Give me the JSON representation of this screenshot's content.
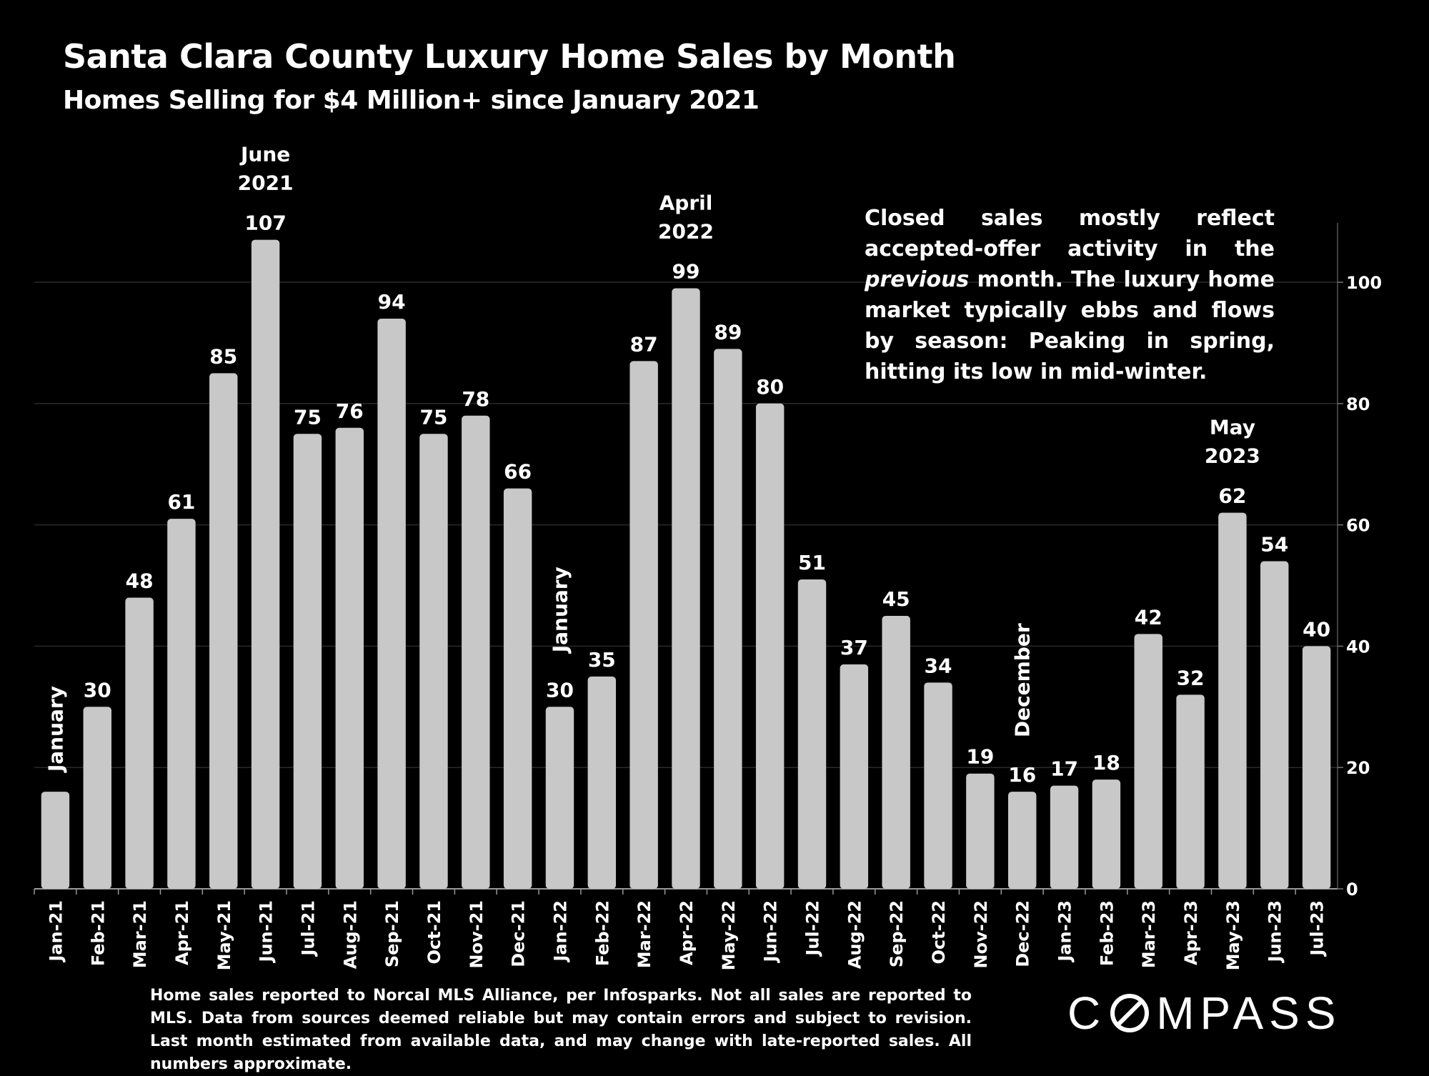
{
  "chart_data": {
    "type": "bar",
    "title": "Santa Clara County Luxury Home Sales by Month",
    "subtitle": "Homes Selling for $4 Million+ since January 2021",
    "categories": [
      "Jan-21",
      "Feb-21",
      "Mar-21",
      "Apr-21",
      "May-21",
      "Jun-21",
      "Jul-21",
      "Aug-21",
      "Sep-21",
      "Oct-21",
      "Nov-21",
      "Dec-21",
      "Jan-22",
      "Feb-22",
      "Mar-22",
      "Apr-22",
      "May-22",
      "Jun-22",
      "Jul-22",
      "Aug-22",
      "Sep-22",
      "Oct-22",
      "Nov-22",
      "Dec-22",
      "Jan-23",
      "Feb-23",
      "Mar-23",
      "Apr-23",
      "May-23",
      "Jun-23",
      "Jul-23"
    ],
    "values": [
      16,
      30,
      48,
      61,
      85,
      107,
      75,
      76,
      94,
      75,
      78,
      66,
      30,
      35,
      87,
      99,
      89,
      80,
      51,
      37,
      45,
      34,
      19,
      16,
      17,
      18,
      42,
      32,
      62,
      54,
      40
    ],
    "value_labels": [
      "",
      "30",
      "48",
      "61",
      "85",
      "107",
      "75",
      "76",
      "94",
      "75",
      "78",
      "66",
      "30",
      "35",
      "87",
      "99",
      "89",
      "80",
      "51",
      "37",
      "45",
      "34",
      "19",
      "16",
      "17",
      "18",
      "42",
      "32",
      "62",
      "54",
      "40"
    ],
    "ylim": [
      0,
      110
    ],
    "yticks": [
      0,
      20,
      40,
      60,
      80,
      100
    ],
    "y_axis_side": "right",
    "grid": true,
    "bar_color": "#c8c8c8",
    "annotations": [
      {
        "index": 0,
        "text": "January",
        "style": "vertical"
      },
      {
        "index": 5,
        "lines": [
          "June",
          "2021"
        ],
        "style": "stacked"
      },
      {
        "index": 12,
        "text": "January",
        "style": "vertical"
      },
      {
        "index": 15,
        "lines": [
          "April",
          "2022"
        ],
        "style": "stacked"
      },
      {
        "index": 23,
        "text": "December",
        "style": "vertical"
      },
      {
        "index": 28,
        "lines": [
          "May",
          "2023"
        ],
        "style": "stacked"
      }
    ]
  },
  "note": {
    "before": "Closed sales mostly reflect accepted-offer activity in the ",
    "emphasis": "previous",
    "after": " month. The luxury home market typically ebbs and flows by season: Peaking in spring, hitting its low in mid-winter."
  },
  "footer": "Home sales reported to Norcal MLS Alliance, per Infosparks. Not all sales are reported to MLS. Data from sources deemed reliable but may contain errors and subject to revision.  Last month estimated from available data, and may change with late-reported sales. All numbers approximate.",
  "logo": {
    "before": "C",
    "after": "MPASS"
  }
}
